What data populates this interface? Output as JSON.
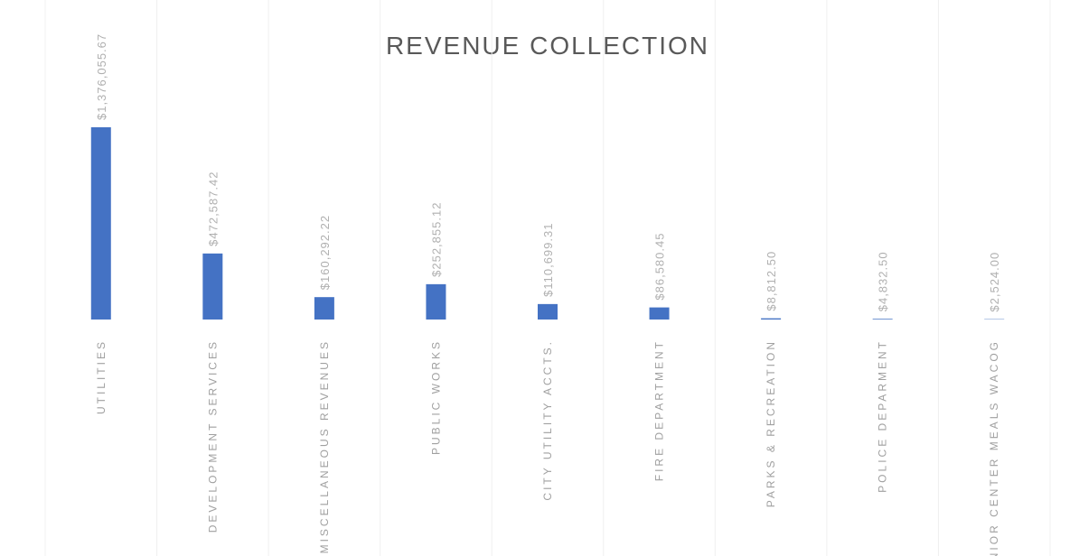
{
  "chart_data": {
    "type": "bar",
    "title": "REVENUE COLLECTION",
    "categories": [
      "UTILITIES",
      "DEVELOPMENT SERVICES",
      "MISCELLANEOUS REVENUES",
      "PUBLIC WORKS",
      "CITY UTILITY ACCTS.",
      "FIRE DEPARTMENT",
      "PARKS & RECREATION",
      "POLICE DEPARMENT",
      "SENIOR CENTER MEALS WACOG"
    ],
    "values": [
      1376055.67,
      472587.42,
      160292.22,
      252855.12,
      110699.31,
      86580.45,
      8812.5,
      4832.5,
      2524.0
    ],
    "value_labels": [
      "$1,376,055.67",
      "$472,587.42",
      "$160,292.22",
      "$252,855.12",
      "$110,699.31",
      "$86,580.45",
      "$8,812.50",
      "$4,832.50",
      "$2,524.00"
    ],
    "color": "#4472c4"
  }
}
